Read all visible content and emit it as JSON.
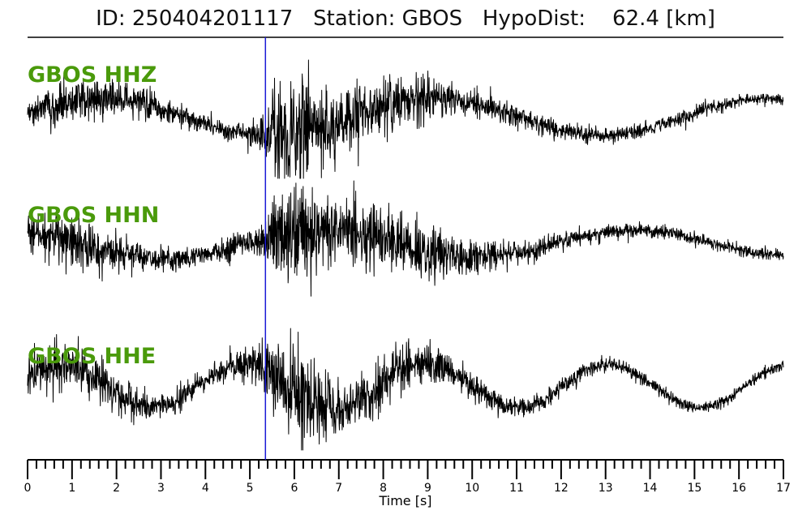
{
  "header": {
    "title": "ID: 250404201117   Station: GBOS   HypoDist:    62.4 [km]"
  },
  "chart_data": {
    "type": "line",
    "title": "ID: 250404201117   Station: GBOS   HypoDist:    62.4 [km]",
    "xlabel": "Time [s]",
    "xlim": [
      0,
      17
    ],
    "xticks": [
      0,
      1,
      2,
      3,
      4,
      5,
      6,
      7,
      8,
      9,
      10,
      11,
      12,
      13,
      14,
      15,
      16,
      17
    ],
    "minor_tick_step": 0.2,
    "pick_time": 5.35,
    "pick_color": "#1a1ad6",
    "trace_color": "#000000",
    "label_color": "#4a9a0b",
    "series": [
      {
        "name": "GBOS HHZ",
        "envelope": [
          [
            0,
            0.16
          ],
          [
            0.5,
            0.3
          ],
          [
            1,
            0.26
          ],
          [
            1.5,
            0.32
          ],
          [
            2,
            0.25
          ],
          [
            3,
            0.18
          ],
          [
            4,
            0.14
          ],
          [
            5,
            0.16
          ],
          [
            5.35,
            0.22
          ],
          [
            5.5,
            0.55
          ],
          [
            6,
            0.85
          ],
          [
            6.5,
            0.62
          ],
          [
            7,
            0.45
          ],
          [
            8,
            0.4
          ],
          [
            9,
            0.3
          ],
          [
            10,
            0.2
          ],
          [
            11,
            0.16
          ],
          [
            12,
            0.13
          ],
          [
            13,
            0.1
          ],
          [
            14,
            0.09
          ],
          [
            15,
            0.1
          ],
          [
            16,
            0.08
          ],
          [
            17,
            0.07
          ]
        ]
      },
      {
        "name": "GBOS HHN",
        "envelope": [
          [
            0,
            0.3
          ],
          [
            0.5,
            0.38
          ],
          [
            1,
            0.4
          ],
          [
            1.5,
            0.36
          ],
          [
            2,
            0.24
          ],
          [
            3,
            0.16
          ],
          [
            4,
            0.14
          ],
          [
            5,
            0.18
          ],
          [
            5.35,
            0.25
          ],
          [
            5.6,
            0.6
          ],
          [
            6,
            0.75
          ],
          [
            6.5,
            0.55
          ],
          [
            7,
            0.45
          ],
          [
            8,
            0.48
          ],
          [
            9,
            0.38
          ],
          [
            10,
            0.22
          ],
          [
            11,
            0.15
          ],
          [
            12,
            0.12
          ],
          [
            13,
            0.1
          ],
          [
            14,
            0.09
          ],
          [
            15,
            0.09
          ],
          [
            16,
            0.08
          ],
          [
            17,
            0.07
          ]
        ]
      },
      {
        "name": "GBOS HHE",
        "envelope": [
          [
            0,
            0.32
          ],
          [
            0.5,
            0.36
          ],
          [
            1,
            0.34
          ],
          [
            1.5,
            0.32
          ],
          [
            2,
            0.26
          ],
          [
            3,
            0.18
          ],
          [
            4,
            0.17
          ],
          [
            5,
            0.22
          ],
          [
            5.35,
            0.32
          ],
          [
            5.6,
            0.6
          ],
          [
            6,
            0.65
          ],
          [
            6.5,
            0.7
          ],
          [
            7,
            0.42
          ],
          [
            8,
            0.36
          ],
          [
            9,
            0.28
          ],
          [
            10,
            0.2
          ],
          [
            11,
            0.15
          ],
          [
            12,
            0.12
          ],
          [
            13,
            0.1
          ],
          [
            14,
            0.09
          ],
          [
            15,
            0.09
          ],
          [
            16,
            0.08
          ],
          [
            17,
            0.08
          ]
        ]
      }
    ]
  }
}
